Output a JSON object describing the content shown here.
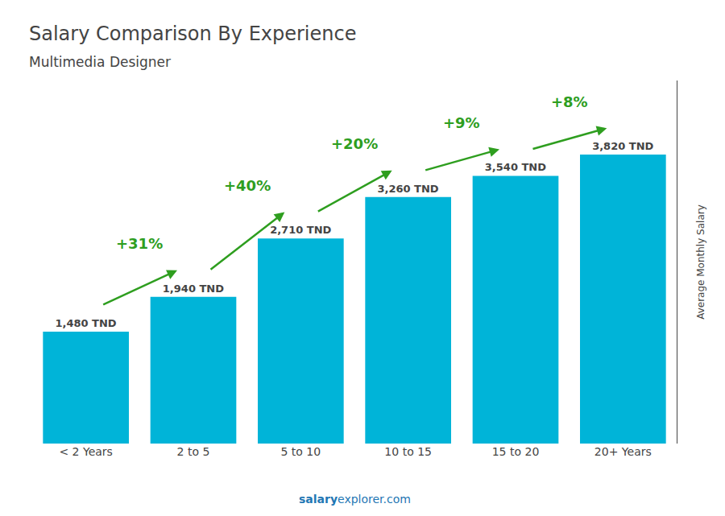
{
  "chart_data": {
    "type": "bar",
    "title": "Salary Comparison By Experience",
    "subtitle": "Multimedia Designer",
    "ylabel": "Average Monthly Salary",
    "categories": [
      "< 2 Years",
      "2 to 5",
      "5 to 10",
      "10 to 15",
      "15 to 20",
      "20+ Years"
    ],
    "values": [
      1480,
      1940,
      2710,
      3260,
      3540,
      3820
    ],
    "value_labels": [
      "1,480 TND",
      "1,940 TND",
      "2,710 TND",
      "3,260 TND",
      "3,540 TND",
      "3,820 TND"
    ],
    "annotations": [
      "+31%",
      "+40%",
      "+20%",
      "+9%",
      "+8%"
    ],
    "watermark": [
      "salary",
      "explorer.com"
    ],
    "color": "#00b4d8",
    "ylim": [
      0,
      4800
    ],
    "grid": false,
    "data_labels": true,
    "tick_labels": "x"
  }
}
